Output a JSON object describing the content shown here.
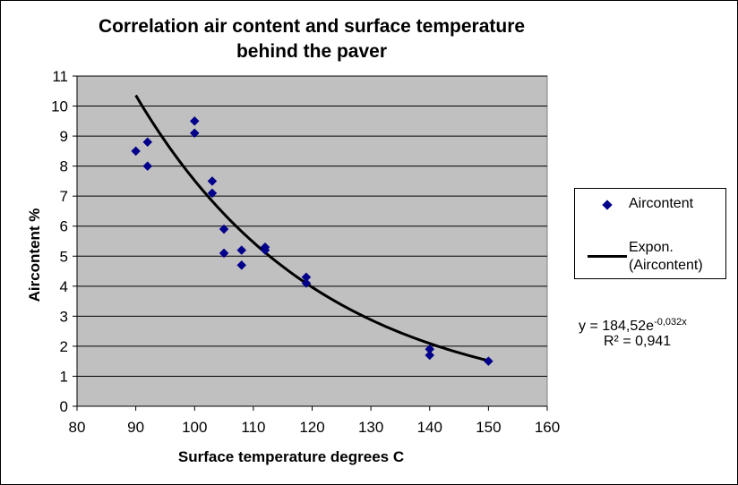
{
  "chart_data": {
    "type": "scatter",
    "title_line1": "Correlation air content and surface temperature",
    "title_line2": "behind the paver",
    "xlabel": "Surface temperature degrees C",
    "ylabel": "Aircontent %",
    "xlim": [
      80,
      160
    ],
    "ylim": [
      0,
      11
    ],
    "x_ticks": [
      "80",
      "90",
      "100",
      "110",
      "120",
      "130",
      "140",
      "150",
      "160"
    ],
    "y_ticks": [
      "0",
      "1",
      "2",
      "3",
      "4",
      "5",
      "6",
      "7",
      "8",
      "9",
      "10",
      "11"
    ],
    "grid": "horizontal",
    "plot_background": "#C0C0C0",
    "legend_position": "right",
    "series": [
      {
        "name": "Aircontent",
        "marker": "diamond",
        "color": "#00008B",
        "points": [
          [
            90,
            8.5
          ],
          [
            92,
            8.8
          ],
          [
            92,
            8.0
          ],
          [
            100,
            9.5
          ],
          [
            100,
            9.1
          ],
          [
            103,
            7.5
          ],
          [
            103,
            7.1
          ],
          [
            105,
            5.9
          ],
          [
            105,
            5.1
          ],
          [
            108,
            5.2
          ],
          [
            108,
            4.7
          ],
          [
            112,
            5.3
          ],
          [
            112,
            5.2
          ],
          [
            119,
            4.3
          ],
          [
            119,
            4.1
          ],
          [
            140,
            1.9
          ],
          [
            140,
            1.7
          ],
          [
            150,
            1.5
          ]
        ]
      }
    ],
    "trendline": {
      "name": "Expon. (Aircontent)",
      "legend_line1": "Expon.",
      "legend_line2": "(Aircontent)",
      "type": "exponential",
      "a": 184.52,
      "b": -0.032,
      "x_range": [
        90,
        150
      ],
      "color": "#000000",
      "equation_prefix": "y = 184,52e",
      "equation_exponent": "-0,032x",
      "r_squared": "R² = 0,941"
    }
  }
}
